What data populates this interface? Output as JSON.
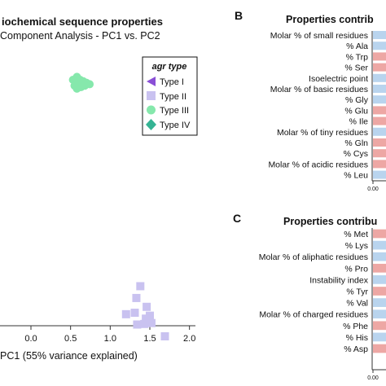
{
  "chart_data": [
    {
      "type": "scatter",
      "panel": "A",
      "title": "iochemical sequence properties",
      "subtitle": "Component Analysis - PC1 vs. PC2",
      "xlabel": "PC1 (55% variance explained)",
      "ylabel": "",
      "xlim": [
        -0.2,
        1.85
      ],
      "x_ticks": [
        "0.0",
        "0.5",
        "1.0",
        "1.5",
        "2.0"
      ],
      "legend": {
        "title": "agr type",
        "placement": "top-right",
        "entries": [
          "Type I",
          "Type II",
          "Type III",
          "Type IV"
        ]
      },
      "series": [
        {
          "name": "Type II",
          "marker": "square",
          "color": "#c9c2f0",
          "points": [
            [
              1.38,
              0.0
            ],
            [
              1.33,
              -0.4
            ],
            [
              1.46,
              -0.7
            ],
            [
              1.2,
              -0.95
            ],
            [
              1.31,
              -0.9
            ],
            [
              1.5,
              -1.0
            ],
            [
              1.45,
              -1.1
            ],
            [
              1.34,
              -1.3
            ],
            [
              1.43,
              -1.28
            ],
            [
              1.52,
              -1.25
            ],
            [
              1.69,
              -1.7
            ]
          ]
        },
        {
          "name": "Type III",
          "marker": "circle",
          "color": "#86e8ac",
          "points": [
            [
              0.53,
              7.0
            ],
            [
              0.58,
              7.1
            ],
            [
              0.62,
              7.0
            ],
            [
              0.56,
              6.9
            ],
            [
              0.66,
              6.95
            ],
            [
              0.6,
              6.85
            ],
            [
              0.7,
              6.9
            ],
            [
              0.63,
              6.75
            ],
            [
              0.55,
              6.8
            ],
            [
              0.58,
              6.7
            ],
            [
              0.74,
              6.85
            ],
            [
              0.68,
              6.8
            ]
          ]
        }
      ]
    },
    {
      "type": "bar",
      "panel": "B",
      "orientation": "horizontal",
      "title": "Properties contrib",
      "categories": [
        "Molar % of small residues",
        "% Ala",
        "% Trp",
        "% Ser",
        "Isoelectric point",
        "Molar % of basic residues",
        "% Gly",
        "% Glu",
        "% Ile",
        "Molar % of tiny residues",
        "% Gln",
        "% Cys",
        "Molar % of acidic residues",
        "% Leu"
      ],
      "colors": [
        "#b9d4ee",
        "#b9d4ee",
        "#eda7a4",
        "#eda7a4",
        "#b9d4ee",
        "#b9d4ee",
        "#b9d4ee",
        "#eda7a4",
        "#eda7a4",
        "#b9d4ee",
        "#eda7a4",
        "#eda7a4",
        "#eda7a4",
        "#b9d4ee"
      ],
      "x_tick_label": "0.00"
    },
    {
      "type": "bar",
      "panel": "C",
      "orientation": "horizontal",
      "title": "Properties contribu",
      "categories": [
        "% Met",
        "% Lys",
        "Molar % of aliphatic residues",
        "% Pro",
        "Instability index",
        "% Tyr",
        "% Val",
        "Molar % of charged residues",
        "% Phe",
        "% His",
        "% Asp"
      ],
      "colors": [
        "#eda7a4",
        "#b9d4ee",
        "#b9d4ee",
        "#eda7a4",
        "#b9d4ee",
        "#eda7a4",
        "#b9d4ee",
        "#b9d4ee",
        "#eda7a4",
        "#b9d4ee",
        "#eda7a4"
      ],
      "x_tick_label": "0.00"
    }
  ],
  "panel_labels": {
    "b": "B",
    "c": "C"
  },
  "legend_colors": {
    "type_i": "#8a4fd6",
    "type_ii": "#c9c2f0",
    "type_iii": "#86e8ac",
    "type_iv": "#35b494"
  }
}
